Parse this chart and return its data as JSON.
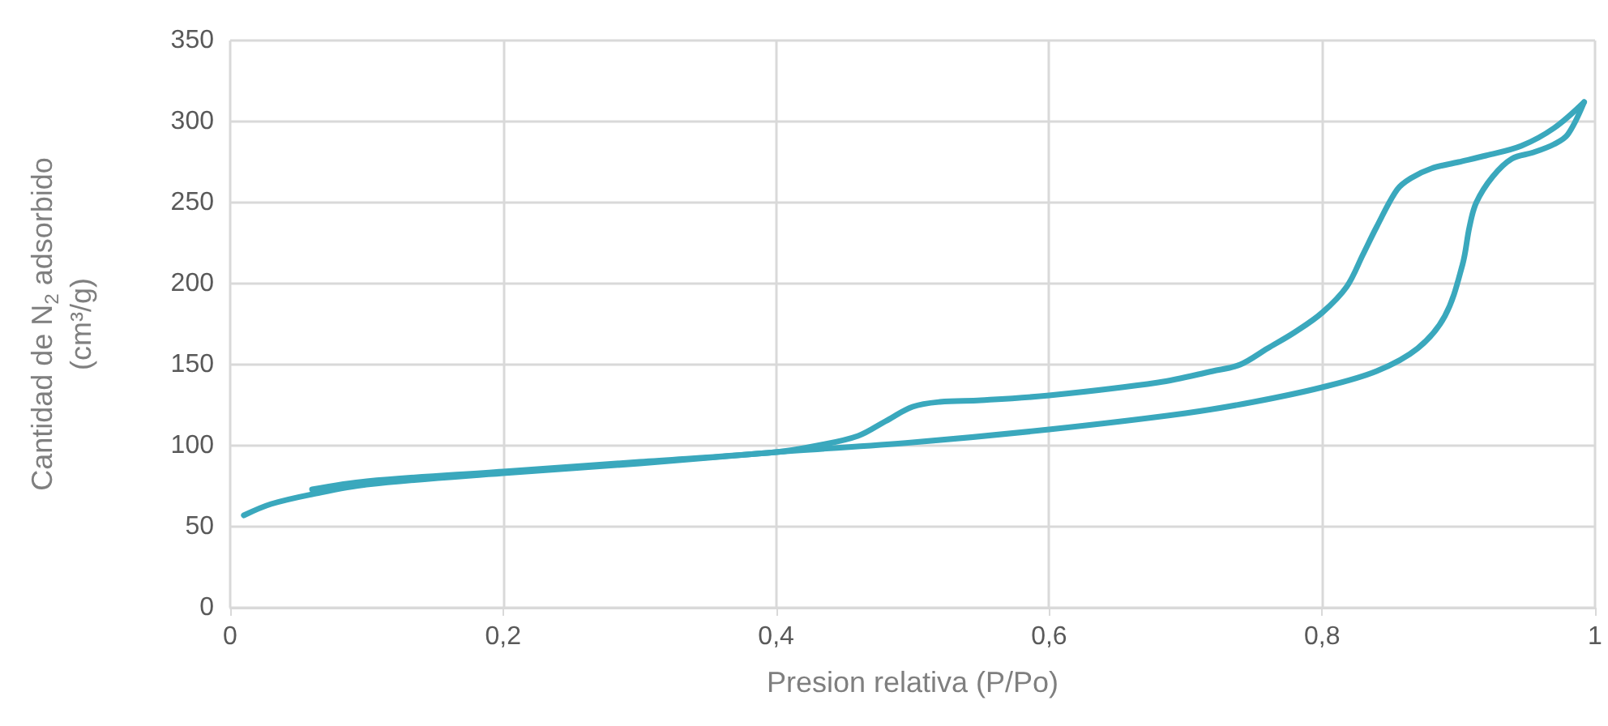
{
  "chart_data": {
    "type": "line",
    "xlabel": "Presion relativa (P/Po)",
    "ylabel": "Cantidad de N$_{2}$ adsorbido\n(cm³/g)",
    "xlim": [
      0,
      1
    ],
    "xticks": [
      0,
      {
        "value": 0.2,
        "label": "0,2"
      },
      {
        "value": 0.4,
        "label": "0,4"
      },
      {
        "value": 0.6,
        "label": "0,6"
      },
      {
        "value": 0.8,
        "label": "0,8"
      },
      1
    ],
    "ylim": [
      0,
      350
    ],
    "yticks": [
      0,
      50,
      100,
      150,
      200,
      250,
      300,
      350
    ],
    "grid": true,
    "marker": "none",
    "line_style": "solid",
    "series": [
      {
        "color": "#3aa8bd",
        "x": [
          0.01,
          0.03,
          0.06,
          0.1,
          0.2,
          0.3,
          0.4,
          0.5,
          0.6,
          0.7,
          0.75,
          0.8,
          0.84,
          0.87,
          0.89,
          0.903,
          0.908,
          0.913,
          0.925,
          0.939,
          0.955,
          0.97,
          0.98,
          0.992
        ],
        "values": [
          57,
          64,
          70,
          76,
          83,
          89,
          96,
          102,
          110,
          120,
          127,
          136,
          146,
          160,
          180,
          212,
          235,
          250,
          266,
          277,
          281,
          286,
          292,
          312
        ]
      },
      {
        "color": "#3aa8bd",
        "x": [
          0.992,
          0.97,
          0.946,
          0.92,
          0.9,
          0.88,
          0.865,
          0.855,
          0.84,
          0.83,
          0.818,
          0.8,
          0.78,
          0.76,
          0.74,
          0.72,
          0.68,
          0.6,
          0.55,
          0.52,
          0.5,
          0.48,
          0.46,
          0.43,
          0.4,
          0.3,
          0.2,
          0.1,
          0.06
        ],
        "values": [
          312,
          296,
          285,
          279,
          275,
          271,
          265,
          258,
          235,
          218,
          198,
          182,
          170,
          160,
          150,
          146,
          139,
          131,
          128,
          127,
          124,
          115,
          106,
          100,
          96,
          90,
          84,
          78,
          73
        ]
      }
    ]
  }
}
